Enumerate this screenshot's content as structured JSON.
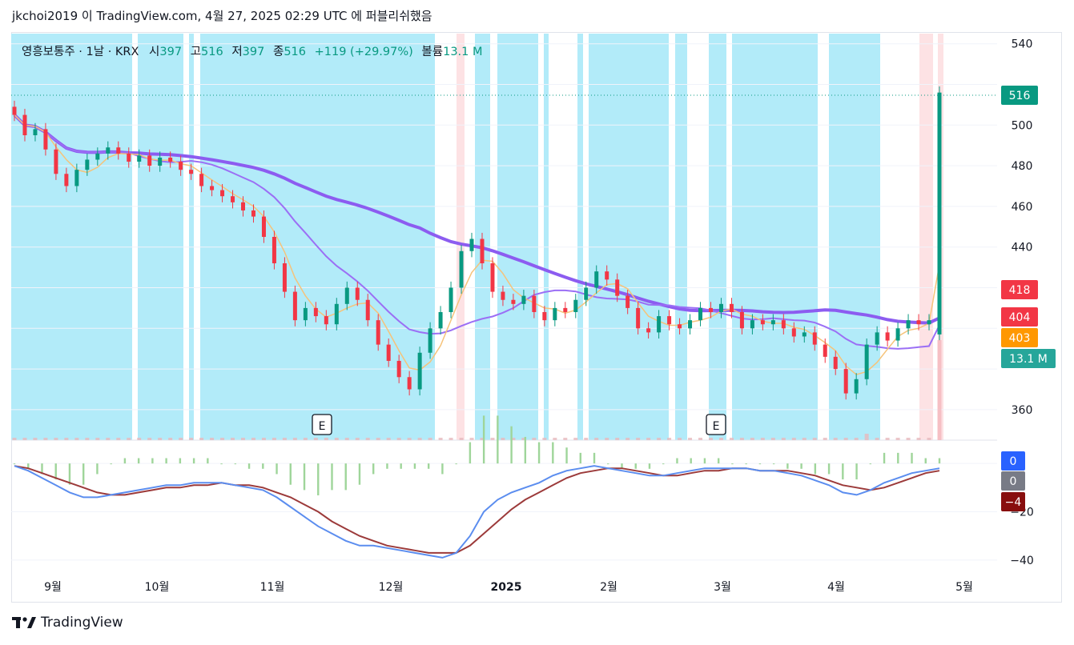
{
  "header": {
    "publish_line": "jkchoi2019 이 TradingView.com, 4월 27, 2025 02:29 UTC 에 퍼블리쉬했음"
  },
  "legend": {
    "symbol": "영흥보통주 · 1날 · KRX",
    "open_label": "시",
    "open_value": "397",
    "high_label": "고",
    "high_value": "516",
    "low_label": "저",
    "low_value": "397",
    "close_label": "종",
    "close_value": "516",
    "change": "+119 (+29.97%)",
    "volume_label": "볼륨",
    "volume_value": "13.1 M"
  },
  "price_axis": {
    "ticks": [
      "540",
      "500",
      "480",
      "460",
      "440",
      "360"
    ]
  },
  "badges": [
    {
      "label": "516",
      "value": 516,
      "color": "#089981"
    },
    {
      "label": "418",
      "value": 418,
      "color": "#f23645"
    },
    {
      "label": "404",
      "value": 404,
      "color": "#f23645"
    },
    {
      "label": "403",
      "value": 403,
      "color": "#ff9800"
    },
    {
      "label": "13.1 M",
      "value": 385,
      "color": "#26a69a"
    }
  ],
  "macd_axis": {
    "ticks": [
      "−20",
      "−40"
    ],
    "badges": [
      {
        "label": "0",
        "color": "#2962ff"
      },
      {
        "label": "0",
        "color": "#787b86"
      },
      {
        "label": "−4",
        "color": "#880e0e"
      }
    ]
  },
  "time_axis": {
    "labels": [
      "9월",
      "10월",
      "11월",
      "12월",
      "2025",
      "2월",
      "3월",
      "4월",
      "5월"
    ]
  },
  "earnings_markers": [
    "E",
    "E"
  ],
  "colors": {
    "up": "#089981",
    "down": "#f23645",
    "ma_slow": "#8c5cf0",
    "ma_fast": "#9b6ff5",
    "ma_short": "#f6c37a",
    "macd_line": "#5b8def",
    "signal_line": "#9c3a3a",
    "hist": "#9fd59a",
    "band_blue": "#b2ebf9",
    "band_pink": "#fde2e4"
  },
  "chart_data": {
    "type": "candlestick",
    "title": "영흥보통주 · 1날 · KRX",
    "x_range": [
      "2024-08-20",
      "2025-04-25"
    ],
    "y_range": [
      345,
      545
    ],
    "series": [
      {
        "name": "close",
        "values": [
          505,
          495,
          498,
          488,
          476,
          470,
          478,
          483,
          486,
          489,
          486,
          482,
          485,
          480,
          484,
          482,
          478,
          476,
          470,
          468,
          465,
          462,
          458,
          455,
          445,
          432,
          418,
          404,
          410,
          406,
          402,
          412,
          420,
          414,
          404,
          392,
          384,
          376,
          370,
          388,
          400,
          408,
          420,
          438,
          444,
          432,
          418,
          414,
          412,
          416,
          408,
          404,
          410,
          408,
          414,
          420,
          428,
          424,
          416,
          410,
          400,
          398,
          406,
          402,
          400,
          404,
          410,
          408,
          412,
          408,
          400,
          404,
          402,
          404,
          400,
          396,
          398,
          392,
          386,
          380,
          368,
          375,
          392,
          398,
          394,
          400,
          404,
          402,
          404,
          516
        ]
      }
    ],
    "macd": {
      "range": [
        -44,
        8
      ],
      "macd": [
        -1,
        -3,
        -6,
        -9,
        -12,
        -14,
        -14,
        -13,
        -12,
        -11,
        -10,
        -9,
        -9,
        -8,
        -8,
        -8,
        -9,
        -10,
        -11,
        -14,
        -18,
        -22,
        -26,
        -29,
        -32,
        -34,
        -34,
        -35,
        -36,
        -37,
        -38,
        -39,
        -37,
        -30,
        -20,
        -15,
        -12,
        -10,
        -8,
        -5,
        -3,
        -2,
        -1,
        -2,
        -3,
        -4,
        -5,
        -5,
        -4,
        -3,
        -2,
        -2,
        -2,
        -2,
        -3,
        -3,
        -4,
        -5,
        -7,
        -9,
        -12,
        -13,
        -11,
        -8,
        -6,
        -4,
        -3,
        -2
      ],
      "signal": [
        -1,
        -2,
        -4,
        -6,
        -8,
        -10,
        -12,
        -13,
        -13,
        -12,
        -11,
        -10,
        -10,
        -9,
        -9,
        -8,
        -9,
        -9,
        -10,
        -12,
        -14,
        -17,
        -20,
        -24,
        -27,
        -30,
        -32,
        -34,
        -35,
        -36,
        -37,
        -37,
        -37,
        -34,
        -29,
        -24,
        -19,
        -15,
        -12,
        -9,
        -6,
        -4,
        -3,
        -2,
        -2,
        -3,
        -4,
        -5,
        -5,
        -4,
        -3,
        -3,
        -2,
        -2,
        -3,
        -3,
        -3,
        -4,
        -5,
        -7,
        -9,
        -10,
        -11,
        -10,
        -8,
        -6,
        -4,
        -3
      ],
      "badge_values": [
        0,
        0,
        -4
      ]
    }
  }
}
